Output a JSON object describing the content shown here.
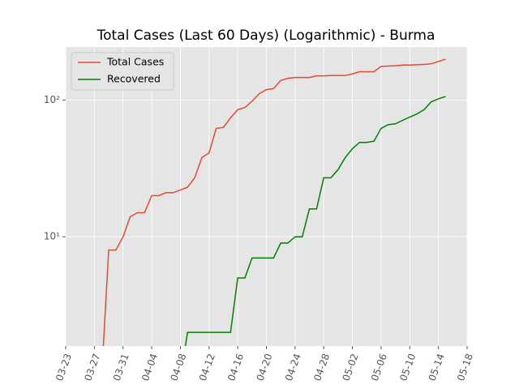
{
  "chart_data": {
    "type": "line",
    "title": "Total Cases (Last 60 Days) (Logarithmic) - Burma",
    "x": [
      "03-28",
      "03-29",
      "03-30",
      "03-31",
      "04-01",
      "04-02",
      "04-03",
      "04-04",
      "04-05",
      "04-06",
      "04-07",
      "04-08",
      "04-09",
      "04-10",
      "04-11",
      "04-12",
      "04-13",
      "04-14",
      "04-15",
      "04-16",
      "04-17",
      "04-18",
      "04-19",
      "04-20",
      "04-21",
      "04-22",
      "04-23",
      "04-24",
      "04-25",
      "04-26",
      "04-27",
      "04-28",
      "04-29",
      "04-30",
      "05-01",
      "05-02",
      "05-03",
      "05-04",
      "05-05",
      "05-06",
      "05-07",
      "05-08",
      "05-09",
      "05-10",
      "05-11",
      "05-12",
      "05-13",
      "05-14",
      "05-15"
    ],
    "series": [
      {
        "name": "Total Cases",
        "color": "#E24A33",
        "values": [
          0,
          8,
          8,
          10,
          14,
          15,
          15,
          20,
          20,
          21,
          21,
          22,
          23,
          27,
          38,
          41,
          62,
          63,
          74,
          85,
          88,
          98,
          111,
          119,
          121,
          139,
          144,
          146,
          146,
          146,
          150,
          150,
          151,
          151,
          151,
          155,
          161,
          161,
          161,
          176,
          177,
          178,
          180,
          180,
          181,
          182,
          184,
          191,
          199
        ]
      },
      {
        "name": "Recovered",
        "color": "#008000",
        "values": [
          0,
          0,
          0,
          0,
          0,
          0,
          0,
          0,
          0,
          0,
          0,
          0,
          2,
          2,
          2,
          2,
          2,
          2,
          2,
          5,
          5,
          7,
          7,
          7,
          7,
          9,
          9,
          10,
          10,
          16,
          16,
          27,
          27,
          31,
          38,
          44,
          49,
          49,
          50,
          62,
          66,
          67,
          71,
          75,
          79,
          85,
          97,
          102,
          106
        ]
      }
    ],
    "xlim": [
      "03-23",
      "05-18"
    ],
    "xticks": [
      "03-23",
      "03-27",
      "03-31",
      "04-04",
      "04-08",
      "04-12",
      "04-16",
      "04-20",
      "04-24",
      "04-28",
      "05-02",
      "05-06",
      "05-10",
      "05-14",
      "05-18"
    ],
    "ylim": [
      1.59,
      244
    ],
    "yticks": [
      {
        "value": 10,
        "label": "10¹"
      },
      {
        "value": 100,
        "label": "10²"
      }
    ],
    "log_scale_y": true,
    "grid": true,
    "legend": "upper left"
  }
}
